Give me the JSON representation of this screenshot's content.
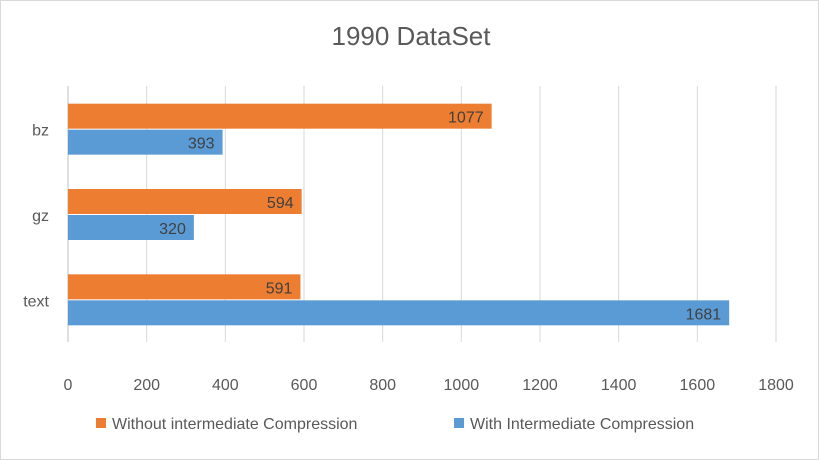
{
  "chart_data": {
    "type": "bar",
    "orientation": "horizontal",
    "title": "1990 DataSet",
    "xlabel": "",
    "ylabel": "",
    "categories": [
      "bz",
      "gz",
      "text"
    ],
    "series": [
      {
        "name": "Without intermediate Compression",
        "color": "#ed7d31",
        "values": [
          1077,
          594,
          591
        ]
      },
      {
        "name": "With Intermediate Compression",
        "color": "#5b9bd5",
        "values": [
          393,
          320,
          1681
        ]
      }
    ],
    "xlim": [
      0,
      1800
    ],
    "xticks": [
      "0",
      "200",
      "400",
      "600",
      "800",
      "1000",
      "1200",
      "1400",
      "1600",
      "1800"
    ],
    "grid": "vertical",
    "legend_position": "bottom",
    "data_labels": true
  }
}
